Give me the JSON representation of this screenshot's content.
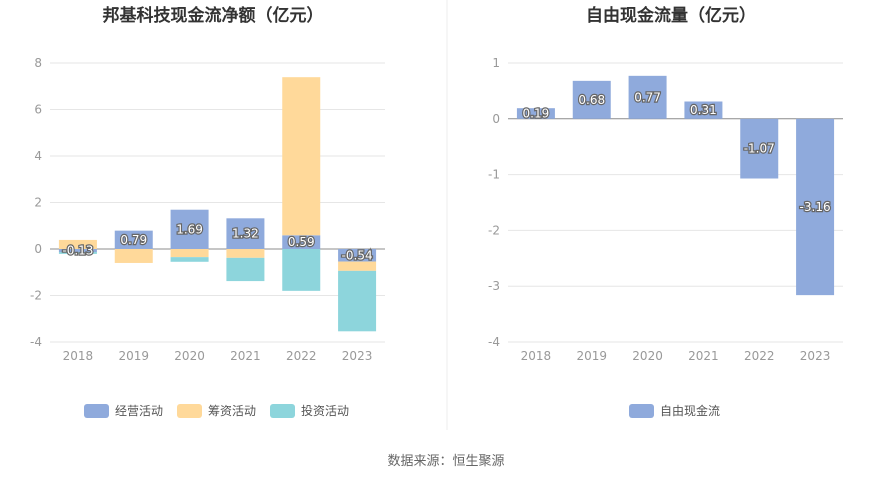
{
  "chart_data": [
    {
      "type": "bar",
      "stacked": true,
      "title": "邦基科技现金流净额（亿元）",
      "categories": [
        "2018",
        "2019",
        "2020",
        "2021",
        "2022",
        "2023"
      ],
      "ylim": [
        -4,
        8
      ],
      "yticks": [
        8,
        6,
        4,
        2,
        0,
        -2,
        -4
      ],
      "series": [
        {
          "name": "经营活动",
          "color": "#8faadc",
          "values": [
            -0.13,
            0.79,
            1.69,
            1.32,
            0.59,
            -0.54
          ]
        },
        {
          "name": "筹资活动",
          "color": "#ffd99a",
          "values": [
            0.39,
            -0.6,
            -0.35,
            -0.38,
            6.8,
            -0.4
          ]
        },
        {
          "name": "投资活动",
          "color": "#8dd5dc",
          "values": [
            -0.08,
            0.0,
            -0.2,
            -1.0,
            -1.8,
            -2.6
          ]
        }
      ],
      "data_labels": [
        "-0.13",
        "0.79",
        "1.69",
        "1.32",
        "0.59",
        "-0.54"
      ],
      "legend": "bottom"
    },
    {
      "type": "bar",
      "title": "自由现金流量（亿元）",
      "categories": [
        "2018",
        "2019",
        "2020",
        "2021",
        "2022",
        "2023"
      ],
      "ylim": [
        -4,
        1
      ],
      "yticks": [
        1,
        0,
        -1,
        -2,
        -3,
        -4
      ],
      "series": [
        {
          "name": "自由现金流",
          "color": "#8faadc",
          "values": [
            0.19,
            0.68,
            0.77,
            0.31,
            -1.07,
            -3.16
          ]
        }
      ],
      "data_labels": [
        "0.19",
        "0.68",
        "0.77",
        "0.31",
        "-1.07",
        "-3.16"
      ],
      "legend": "bottom"
    }
  ],
  "source": "数据来源：恒生聚源"
}
